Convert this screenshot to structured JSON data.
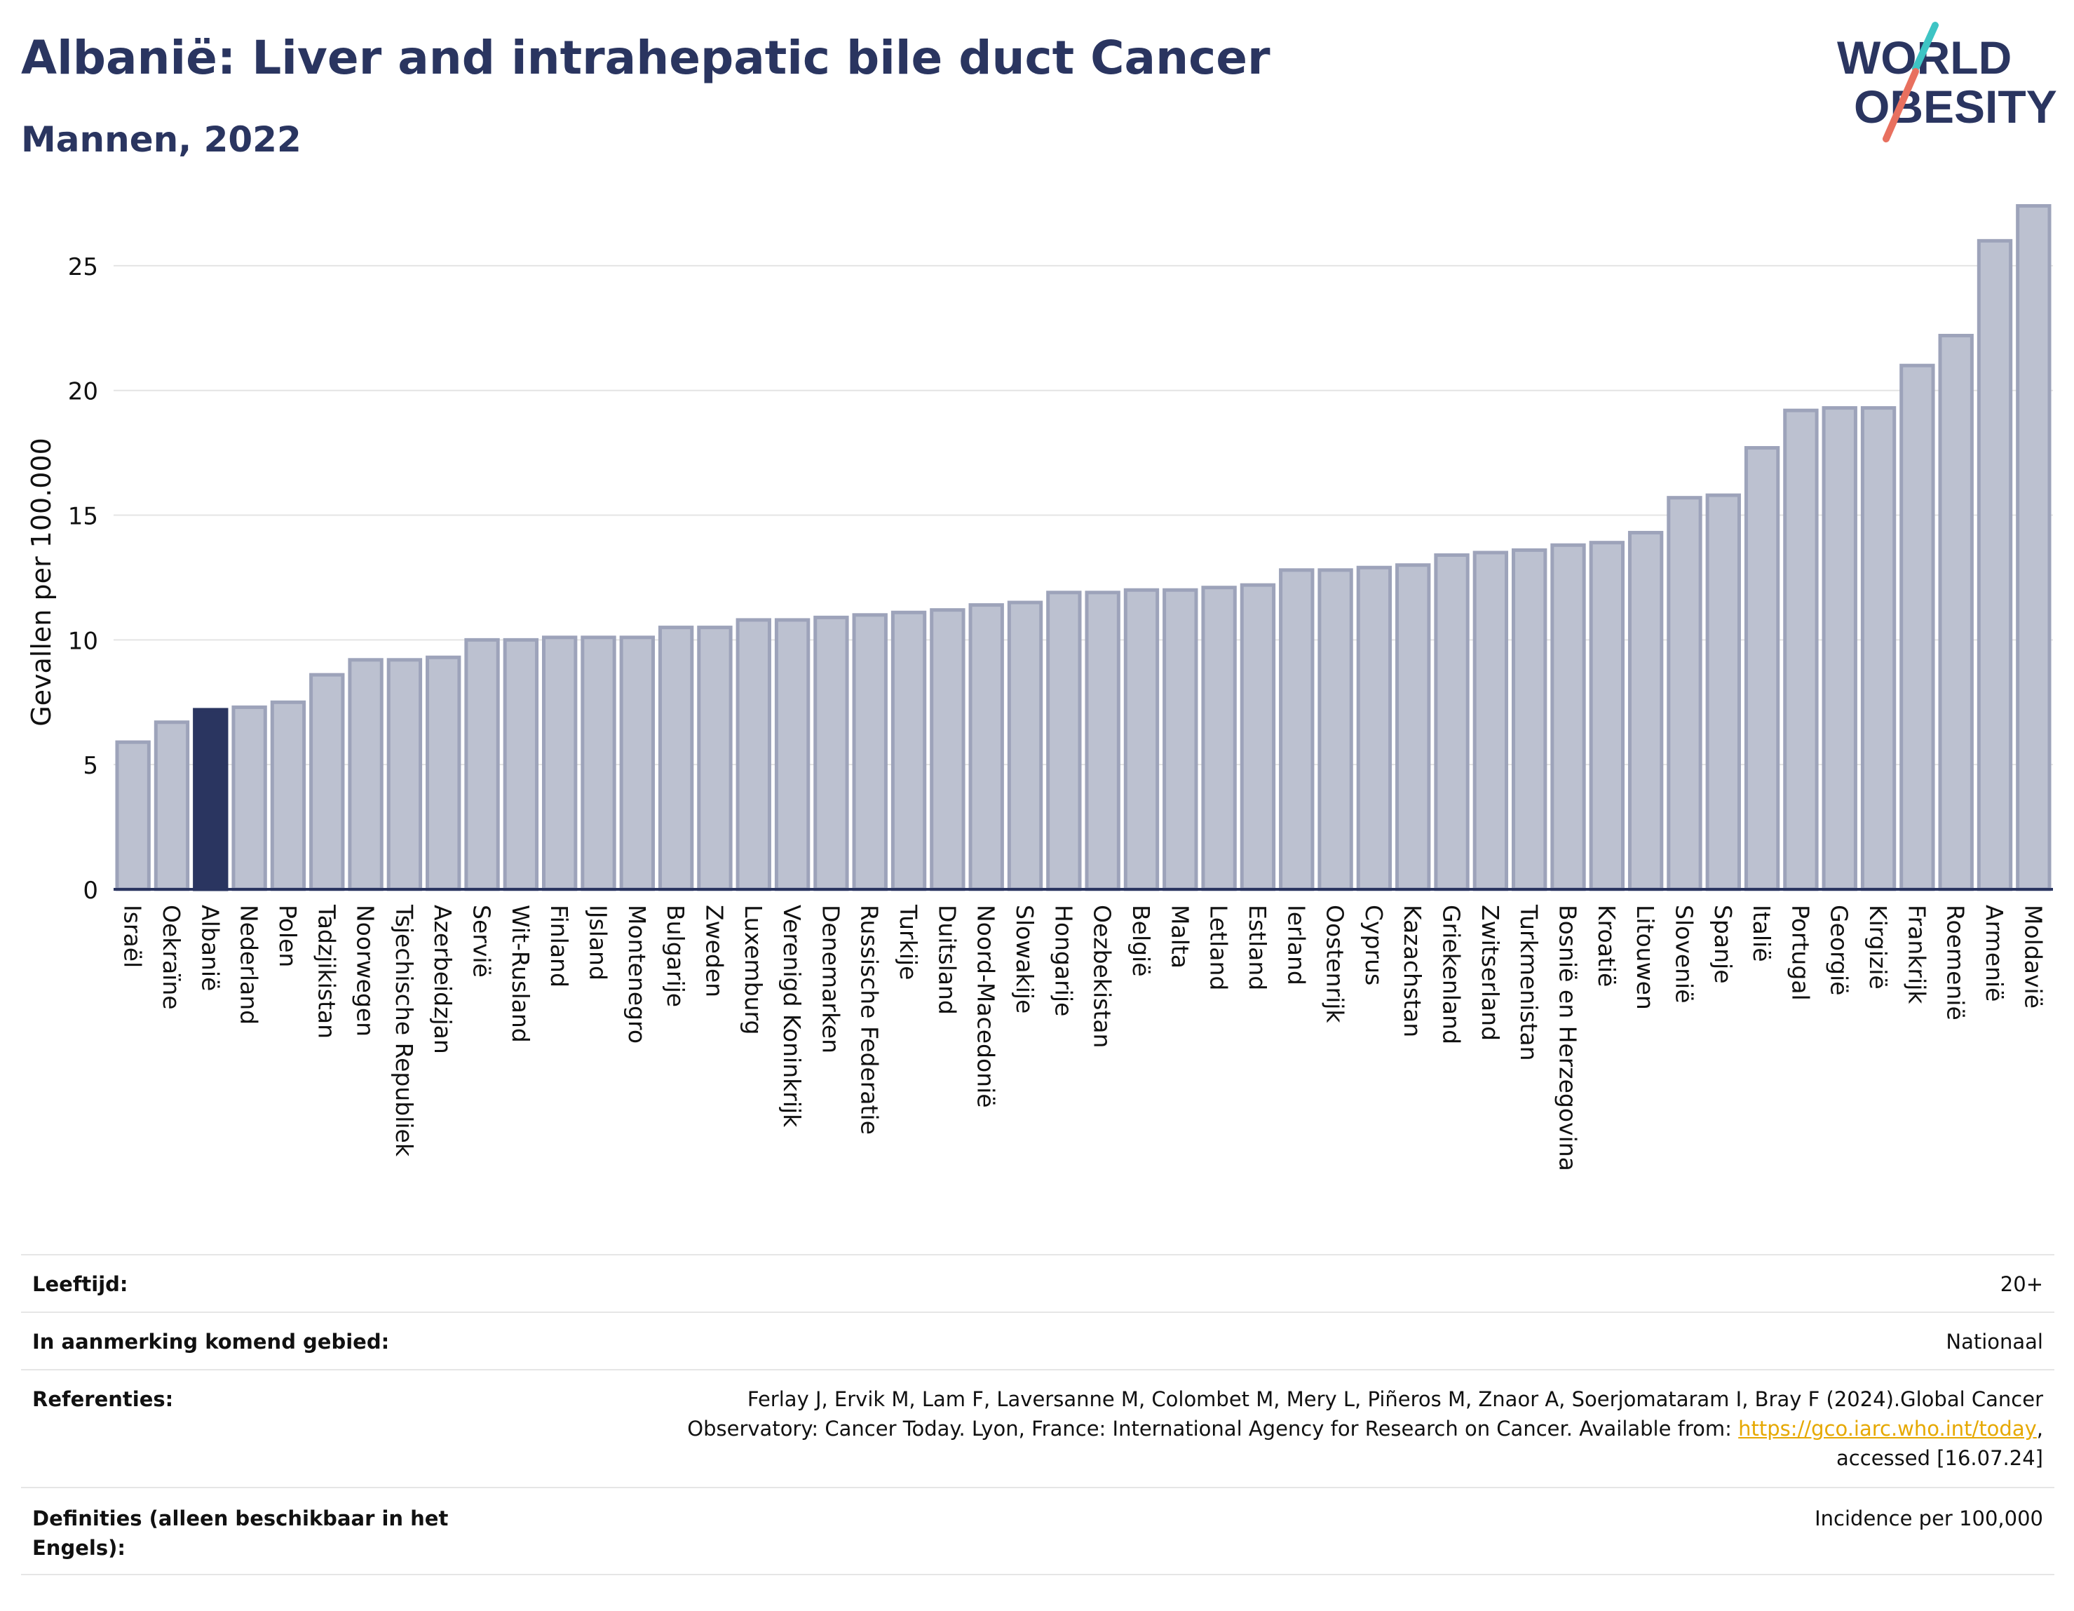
{
  "header": {
    "title": "Albanië: Liver and intrahepatic bile duct Cancer",
    "subtitle": "Mannen, 2022"
  },
  "logo": {
    "line1": "WORLD",
    "line2": "OBESITY",
    "colors": {
      "text": "#2a3560",
      "slash_teal": "#3ec4c4",
      "slash_red": "#e8705f"
    }
  },
  "chart_data": {
    "type": "bar",
    "ylabel": "Gevallen per 100.000",
    "ylim": [
      0,
      27.5
    ],
    "yticks": [
      0,
      5,
      10,
      15,
      20,
      25
    ],
    "grid": true,
    "highlight": "Albanië",
    "colors": {
      "bar": "#bcc1d0",
      "bar_edge": "#9da3ba",
      "highlight": "#2a3560",
      "axis": "#2a3560",
      "grid": "#e4e4e4"
    },
    "categories": [
      "Israël",
      "Oekraïne",
      "Albanië",
      "Nederland",
      "Polen",
      "Tadzjikistan",
      "Noorwegen",
      "Tsjechische Republiek",
      "Azerbeidzjan",
      "Servië",
      "Wit-Rusland",
      "Finland",
      "IJsland",
      "Montenegro",
      "Bulgarije",
      "Zweden",
      "Luxemburg",
      "Verenigd Koninkrijk",
      "Denemarken",
      "Russische Federatie",
      "Turkije",
      "Duitsland",
      "Noord-Macedonië",
      "Slowakije",
      "Hongarije",
      "Oezbekistan",
      "België",
      "Malta",
      "Letland",
      "Estland",
      "Ierland",
      "Oostenrijk",
      "Cyprus",
      "Kazachstan",
      "Griekenland",
      "Zwitserland",
      "Turkmenistan",
      "Bosnië en Herzegovina",
      "Kroatië",
      "Litouwen",
      "Slovenië",
      "Spanje",
      "Italië",
      "Portugal",
      "Georgië",
      "Kirgizië",
      "Frankrijk",
      "Roemenië",
      "Armenië",
      "Moldavië"
    ],
    "values": [
      5.9,
      6.7,
      7.2,
      7.3,
      7.5,
      8.6,
      9.2,
      9.2,
      9.3,
      10.0,
      10.0,
      10.1,
      10.1,
      10.1,
      10.5,
      10.5,
      10.8,
      10.8,
      10.9,
      11.0,
      11.1,
      11.2,
      11.4,
      11.5,
      11.9,
      11.9,
      12.0,
      12.0,
      12.1,
      12.2,
      12.8,
      12.8,
      12.9,
      13.0,
      13.4,
      13.5,
      13.6,
      13.8,
      13.9,
      14.3,
      15.7,
      15.8,
      17.7,
      19.2,
      19.3,
      19.3,
      21.0,
      22.2,
      26.0,
      27.4
    ]
  },
  "info": {
    "age_label": "Leeftijd:",
    "age_value": "20+",
    "area_label": "In aanmerking komend gebied:",
    "area_value": "Nationaal",
    "refs_label": "Referenties:",
    "refs_line1": "Ferlay J, Ervik M, Lam F, Laversanne M, Colombet M, Mery L, Piñeros M, Znaor A, Soerjomataram I, Bray F (2024).Global Cancer",
    "refs_line2": "Observatory: Cancer Today. Lyon, France: International Agency for Research on Cancer. Available from: ",
    "refs_link": "https://gco.iarc.who.int/today",
    "refs_line2_end": ",",
    "refs_line3": "accessed [16.07.24]",
    "defs_label_1": "Definities (alleen beschikbaar in het",
    "defs_label_2": "Engels):",
    "defs_value": "Incidence per 100,000"
  }
}
